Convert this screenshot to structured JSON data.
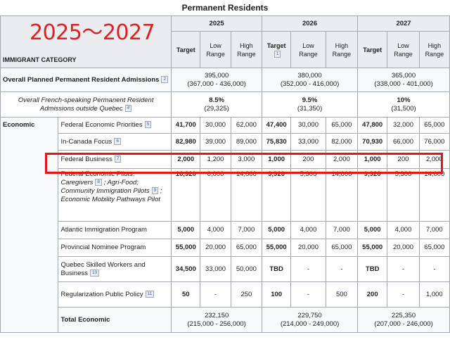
{
  "title": "Permanent Residents",
  "overlay_text": "2025～2027",
  "header": {
    "category": "IMMIGRANT CATEGORY",
    "years": [
      "2025",
      "2026",
      "2027"
    ],
    "target": "Target",
    "low": "Low Range",
    "high": "High Range",
    "target_ref": "1"
  },
  "overall": {
    "label": "Overall Planned Permanent Resident Admissions",
    "ref": "2",
    "y2025": {
      "value": "395,000",
      "range": "(367,000 - 436,000)"
    },
    "y2026": {
      "value": "380,000",
      "range": "(352,000 - 416,000)"
    },
    "y2027": {
      "value": "365,000",
      "range": "(338,000 - 401,000)"
    }
  },
  "french": {
    "label": "Overall French-speaking Permanent Resident Admissions outside Quebec",
    "ref": "4",
    "y2025": {
      "value": "8.5%",
      "range": "(29,325)"
    },
    "y2026": {
      "value": "9.5%",
      "range": "(31,350)"
    },
    "y2027": {
      "value": "10%",
      "range": "(31,500)"
    }
  },
  "economic_label": "Economic",
  "rows": [
    {
      "name": "Federal Economic Priorities",
      "ref": "5",
      "cells": [
        "41,700",
        "30,000",
        "62,000",
        "47,400",
        "30,000",
        "65,000",
        "47,800",
        "32,000",
        "65,000"
      ]
    },
    {
      "name": "In-Canada Focus",
      "ref": "6",
      "cells": [
        "82,980",
        "39,000",
        "89,000",
        "75,830",
        "33,000",
        "82,000",
        "70,930",
        "66,000",
        "76,000"
      ]
    },
    {
      "name": "Federal Business",
      "ref": "7",
      "cells": [
        "2,000",
        "1,200",
        "3,000",
        "1,000",
        "200",
        "2,000",
        "1,000",
        "200",
        "2,000"
      ]
    },
    {
      "name": "Federal Economic Pilots:",
      "pilots": [
        "Caregivers",
        "; Agri-Food; Community Immigration Pilots",
        "; Economic Mobility Pathways Pilot"
      ],
      "pilot_refs": [
        "8",
        "9"
      ],
      "cells": [
        "10,920",
        "6,000",
        "14,800",
        "9,920",
        "5,300",
        "14,000",
        "9,920",
        "5,300",
        "14,000"
      ]
    },
    {
      "name": "Atlantic Immigration Program",
      "cells": [
        "5,000",
        "4,000",
        "7,000",
        "5,000",
        "4,000",
        "7,000",
        "5,000",
        "4,000",
        "7,000"
      ]
    },
    {
      "name": "Provincial Nominee Program",
      "cells": [
        "55,000",
        "20,000",
        "65,000",
        "55,000",
        "20,000",
        "65,000",
        "55,000",
        "20,000",
        "65,000"
      ]
    },
    {
      "name": "Quebec Skilled Workers and Business",
      "ref": "10",
      "cells": [
        "34,500",
        "33,000",
        "50,000",
        "TBD",
        "-",
        "-",
        "TBD",
        "-",
        "-"
      ]
    },
    {
      "name": "Regularization Public Policy",
      "ref": "11",
      "cells": [
        "50",
        "-",
        "250",
        "100",
        "-",
        "500",
        "200",
        "-",
        "1,000"
      ]
    }
  ],
  "total": {
    "label": "Total Economic",
    "y2025": {
      "value": "232,150",
      "range": "(215,000 - 256,000)"
    },
    "y2026": {
      "value": "229,750",
      "range": "(214,000 - 249,000)"
    },
    "y2027": {
      "value": "225,350",
      "range": "(207,000 - 246,000)"
    }
  }
}
